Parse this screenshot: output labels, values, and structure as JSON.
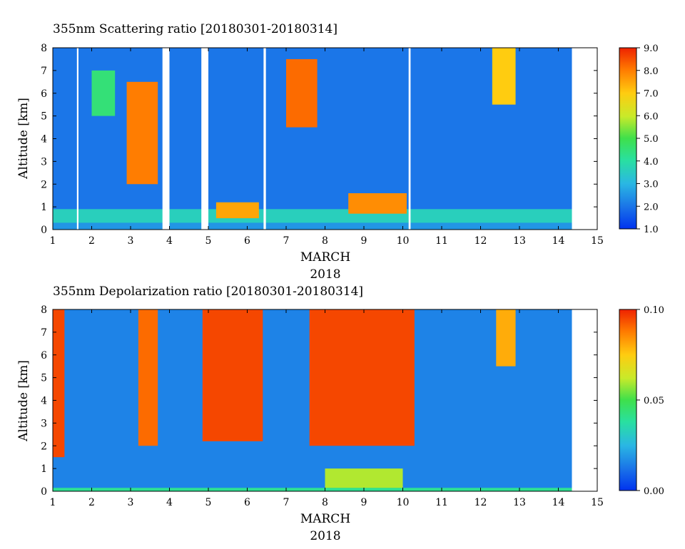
{
  "chart_data": [
    {
      "type": "heatmap",
      "title": "355nm Scattering ratio [20180301-20180314]",
      "xlabel": "MARCH",
      "xlabel2": "2018",
      "ylabel": "Altitude [km]",
      "xlim": [
        1,
        15
      ],
      "ylim": [
        0,
        8
      ],
      "xticks": [
        1,
        2,
        3,
        4,
        5,
        6,
        7,
        8,
        9,
        10,
        11,
        12,
        13,
        14,
        15
      ],
      "yticks": [
        0,
        1,
        2,
        3,
        4,
        5,
        6,
        7,
        8
      ],
      "colorbar": {
        "range": [
          1.0,
          9.0
        ],
        "ticks": [
          "1.0",
          "2.0",
          "3.0",
          "4.0",
          "5.0",
          "6.0",
          "7.0",
          "8.0",
          "9.0"
        ],
        "tick_values": [
          1,
          2,
          3,
          4,
          5,
          6,
          7,
          8,
          9
        ]
      },
      "data_extent": [
        1.0,
        14.35
      ],
      "background_value": 2.0,
      "no_data": [
        [
          1.62,
          1.66
        ],
        [
          3.82,
          4.0
        ],
        [
          4.82,
          5.0
        ],
        [
          6.42,
          6.48
        ],
        [
          10.15,
          10.2
        ],
        [
          14.35,
          15.0
        ]
      ],
      "layers": [
        {
          "x": [
            1.0,
            14.35
          ],
          "alt": [
            0.0,
            0.3
          ],
          "value": 2.5
        },
        {
          "x": [
            1.0,
            14.35
          ],
          "alt": [
            0.3,
            0.9
          ],
          "value": 3.6
        },
        {
          "x": [
            5.2,
            6.3
          ],
          "alt": [
            0.5,
            1.2
          ],
          "value": 7.5
        },
        {
          "x": [
            8.6,
            10.1
          ],
          "alt": [
            0.7,
            1.6
          ],
          "value": 7.8
        },
        {
          "x": [
            2.9,
            3.7
          ],
          "alt": [
            2.0,
            6.5
          ],
          "value": 8.0
        },
        {
          "x": [
            7.0,
            7.8
          ],
          "alt": [
            4.5,
            7.5
          ],
          "value": 8.2
        },
        {
          "x": [
            12.3,
            12.9
          ],
          "alt": [
            5.5,
            8.0
          ],
          "value": 7.0
        },
        {
          "x": [
            2.0,
            2.6
          ],
          "alt": [
            5.0,
            7.0
          ],
          "value": 4.5
        }
      ]
    },
    {
      "type": "heatmap",
      "title": "355nm Depolarization ratio [20180301-20180314]",
      "xlabel": "MARCH",
      "xlabel2": "2018",
      "ylabel": "Altitude [km]",
      "xlim": [
        1,
        15
      ],
      "ylim": [
        0,
        8
      ],
      "xticks": [
        1,
        2,
        3,
        4,
        5,
        6,
        7,
        8,
        9,
        10,
        11,
        12,
        13,
        14,
        15
      ],
      "yticks": [
        0,
        1,
        2,
        3,
        4,
        5,
        6,
        7,
        8
      ],
      "colorbar": {
        "range": [
          0.0,
          0.1
        ],
        "ticks": [
          "0.00",
          "0.05",
          "0.10"
        ],
        "tick_values": [
          0.0,
          0.05,
          0.1
        ]
      },
      "data_extent": [
        1.0,
        14.35
      ],
      "background_value": 0.015,
      "no_data": [
        [
          14.35,
          15.0
        ]
      ],
      "layers": [
        {
          "x": [
            1.0,
            1.3
          ],
          "alt": [
            1.5,
            8.0
          ],
          "value": 0.095
        },
        {
          "x": [
            4.85,
            6.4
          ],
          "alt": [
            2.2,
            8.0
          ],
          "value": 0.095
        },
        {
          "x": [
            7.6,
            10.3
          ],
          "alt": [
            2.0,
            8.0
          ],
          "value": 0.095
        },
        {
          "x": [
            3.2,
            3.7
          ],
          "alt": [
            2.0,
            8.0
          ],
          "value": 0.09
        },
        {
          "x": [
            12.4,
            12.9
          ],
          "alt": [
            5.5,
            8.0
          ],
          "value": 0.08
        },
        {
          "x": [
            8.0,
            10.0
          ],
          "alt": [
            0.0,
            1.0
          ],
          "value": 0.06
        },
        {
          "x": [
            1.0,
            14.35
          ],
          "alt": [
            0.0,
            0.15
          ],
          "value": 0.04
        }
      ]
    }
  ]
}
